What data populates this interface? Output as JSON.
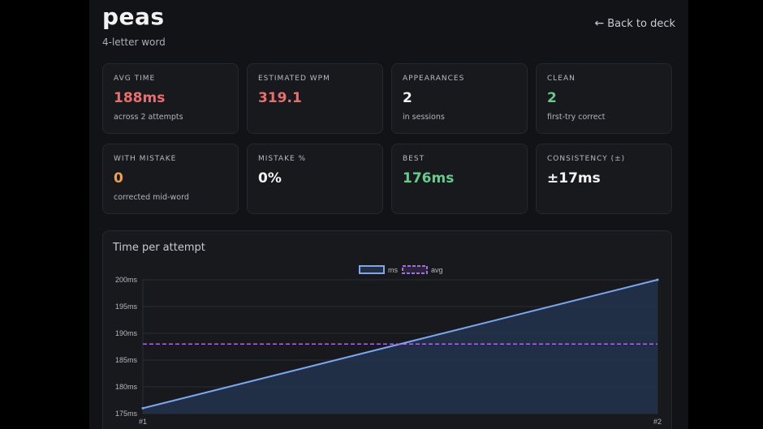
{
  "header": {
    "title": "peas",
    "subtitle": "4-letter word",
    "back_label": "Back to deck"
  },
  "stats": [
    {
      "label": "AVG TIME",
      "value": "188ms",
      "note": "across 2 attempts",
      "color": "#f06c6c"
    },
    {
      "label": "ESTIMATED WPM",
      "value": "319.1",
      "note": "",
      "color": "#f06c6c"
    },
    {
      "label": "APPEARANCES",
      "value": "2",
      "note": "in sessions",
      "color": "#f2f2f2"
    },
    {
      "label": "CLEAN",
      "value": "2",
      "note": "first-try correct",
      "color": "#5fd08a"
    },
    {
      "label": "WITH MISTAKE",
      "value": "0",
      "note": "corrected mid-word",
      "color": "#f0a14a"
    },
    {
      "label": "MISTAKE %",
      "value": "0%",
      "note": "",
      "color": "#f2f2f2"
    },
    {
      "label": "BEST",
      "value": "176ms",
      "note": "",
      "color": "#5fd08a"
    },
    {
      "label": "CONSISTENCY (±)",
      "value": "±17ms",
      "note": "",
      "color": "#f2f2f2"
    }
  ],
  "chart": {
    "title": "Time per attempt",
    "legend": [
      {
        "name": "ms",
        "color": "#7aa7f0",
        "style": "solid"
      },
      {
        "name": "avg",
        "color": "#a56de0",
        "style": "dashed"
      }
    ]
  },
  "chart_data": {
    "type": "line",
    "title": "Time per attempt",
    "x": [
      "#1",
      "#2"
    ],
    "series": [
      {
        "name": "ms",
        "values": [
          176,
          200
        ],
        "color": "#7aa7f0",
        "fill": true
      },
      {
        "name": "avg",
        "values": [
          188,
          188
        ],
        "color": "#a56de0",
        "dashed": true
      }
    ],
    "ylim": [
      175,
      200
    ],
    "y_ticks": [
      175,
      180,
      185,
      190,
      195,
      200
    ],
    "y_tick_format": "{v}ms",
    "grid": true,
    "legend_position": "top-center"
  }
}
